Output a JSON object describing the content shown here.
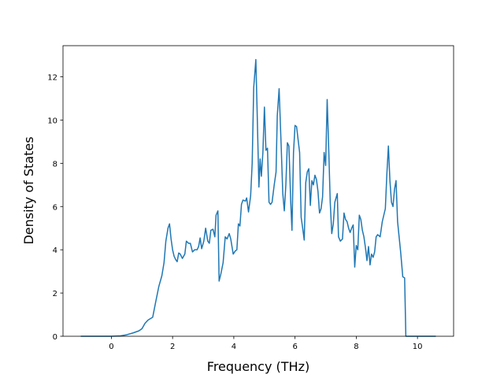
{
  "chart_data": {
    "type": "line",
    "xlabel": "Frequency (THz)",
    "ylabel": "Density of States",
    "color": "#1f77b4",
    "xlim": [
      -1.58,
      11.18
    ],
    "xticks": [
      0,
      2,
      4,
      6,
      8,
      10
    ],
    "ylim": [
      0,
      13.44
    ],
    "yticks": [
      0,
      2,
      4,
      6,
      8,
      10,
      12
    ],
    "x": [
      -1.0,
      0,
      0.3,
      0.5,
      0.7,
      0.9,
      1.0,
      1.1,
      1.2,
      1.35,
      1.45,
      1.55,
      1.65,
      1.72,
      1.78,
      1.85,
      1.9,
      1.95,
      2.0,
      2.05,
      2.1,
      2.15,
      2.2,
      2.25,
      2.32,
      2.4,
      2.45,
      2.52,
      2.58,
      2.65,
      2.72,
      2.8,
      2.85,
      2.9,
      2.95,
      3.02,
      3.08,
      3.15,
      3.2,
      3.25,
      3.32,
      3.38,
      3.42,
      3.48,
      3.52,
      3.58,
      3.65,
      3.72,
      3.78,
      3.85,
      3.9,
      3.98,
      4.05,
      4.1,
      4.15,
      4.2,
      4.25,
      4.3,
      4.38,
      4.42,
      4.48,
      4.55,
      4.6,
      4.65,
      4.72,
      4.76,
      4.82,
      4.86,
      4.9,
      4.95,
      5.0,
      5.05,
      5.1,
      5.15,
      5.2,
      5.25,
      5.32,
      5.38,
      5.42,
      5.48,
      5.55,
      5.6,
      5.65,
      5.7,
      5.75,
      5.8,
      5.86,
      5.9,
      5.95,
      6.0,
      6.05,
      6.1,
      6.15,
      6.2,
      6.25,
      6.3,
      6.35,
      6.4,
      6.45,
      6.5,
      6.55,
      6.6,
      6.65,
      6.7,
      6.75,
      6.8,
      6.85,
      6.9,
      6.95,
      7.0,
      7.05,
      7.1,
      7.15,
      7.2,
      7.25,
      7.3,
      7.38,
      7.42,
      7.48,
      7.55,
      7.6,
      7.65,
      7.7,
      7.75,
      7.8,
      7.85,
      7.9,
      7.95,
      8.0,
      8.05,
      8.1,
      8.15,
      8.2,
      8.25,
      8.3,
      8.35,
      8.4,
      8.45,
      8.5,
      8.55,
      8.6,
      8.65,
      8.7,
      8.78,
      8.85,
      8.9,
      8.95,
      9.0,
      9.05,
      9.1,
      9.15,
      9.2,
      9.25,
      9.3,
      9.35,
      9.45,
      9.52,
      9.58,
      9.62,
      9.7,
      10.0,
      10.6
    ],
    "values": [
      0,
      0,
      0.02,
      0.07,
      0.15,
      0.25,
      0.35,
      0.6,
      0.75,
      0.88,
      1.6,
      2.3,
      2.8,
      3.4,
      4.4,
      5.0,
      5.2,
      4.5,
      4.0,
      3.7,
      3.55,
      3.45,
      3.85,
      3.8,
      3.6,
      3.8,
      4.4,
      4.3,
      4.3,
      3.9,
      4.0,
      4.0,
      4.15,
      4.55,
      4.05,
      4.4,
      5.0,
      4.4,
      4.3,
      4.9,
      4.95,
      4.6,
      5.6,
      5.8,
      2.55,
      2.9,
      3.4,
      4.6,
      4.5,
      4.75,
      4.5,
      3.8,
      3.95,
      4.0,
      5.2,
      5.1,
      6.1,
      6.3,
      6.25,
      6.4,
      5.75,
      6.5,
      8.0,
      11.5,
      12.8,
      10.5,
      6.9,
      8.2,
      7.4,
      8.5,
      10.6,
      8.6,
      8.7,
      6.2,
      6.1,
      6.2,
      7.0,
      7.6,
      10.2,
      11.45,
      8.7,
      6.6,
      5.8,
      7.0,
      8.95,
      8.8,
      6.2,
      4.9,
      8.5,
      9.75,
      9.7,
      9.1,
      8.5,
      5.5,
      5.0,
      4.45,
      7.1,
      7.6,
      7.75,
      6.05,
      7.2,
      7.0,
      7.45,
      7.25,
      6.7,
      5.7,
      5.9,
      6.45,
      8.5,
      7.9,
      10.95,
      8.7,
      6.2,
      4.75,
      5.2,
      6.2,
      6.6,
      4.6,
      4.4,
      4.5,
      5.7,
      5.4,
      5.3,
      5.0,
      4.8,
      5.0,
      5.15,
      3.2,
      4.2,
      4.0,
      5.6,
      5.4,
      4.9,
      4.6,
      4.1,
      3.5,
      4.15,
      3.3,
      3.8,
      3.65,
      3.9,
      4.6,
      4.7,
      4.6,
      5.3,
      5.6,
      5.9,
      7.5,
      8.8,
      7.2,
      6.2,
      6.0,
      6.8,
      7.2,
      5.3,
      3.9,
      2.75,
      2.7,
      0,
      0,
      0,
      0
    ]
  }
}
